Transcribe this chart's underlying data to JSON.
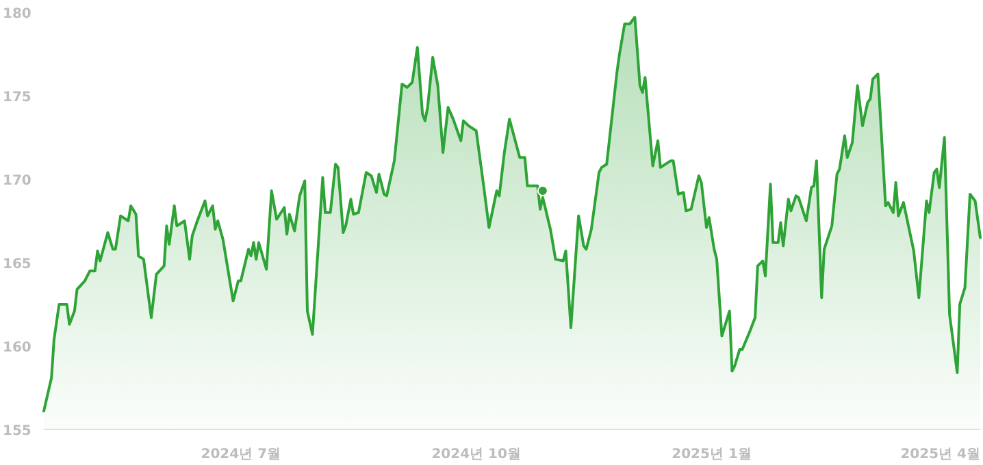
{
  "chart_data": {
    "type": "area",
    "xlim": [
      "2024-04-15",
      "2025-04-16"
    ],
    "xticks": [
      {
        "value": "2024-07-01",
        "label": "2024년 7월"
      },
      {
        "value": "2024-10-01",
        "label": "2024년 10월"
      },
      {
        "value": "2025-01-01",
        "label": "2025년 1월"
      },
      {
        "value": "2025-04-01",
        "label": "2025년 4월"
      }
    ],
    "ylim": [
      155,
      180
    ],
    "yticks": [
      155,
      160,
      165,
      170,
      175,
      180
    ],
    "series": [
      {
        "color": "#2ea336",
        "x": [
          "2024-04-15",
          "2024-04-18",
          "2024-04-19",
          "2024-04-21",
          "2024-04-24",
          "2024-04-25",
          "2024-04-27",
          "2024-04-28",
          "2024-05-01",
          "2024-05-03",
          "2024-05-05",
          "2024-05-06",
          "2024-05-07",
          "2024-05-10",
          "2024-05-12",
          "2024-05-13",
          "2024-05-15",
          "2024-05-18",
          "2024-05-19",
          "2024-05-21",
          "2024-05-22",
          "2024-05-24",
          "2024-05-27",
          "2024-05-29",
          "2024-06-01",
          "2024-06-02",
          "2024-06-03",
          "2024-06-05",
          "2024-06-06",
          "2024-06-09",
          "2024-06-11",
          "2024-06-12",
          "2024-06-14",
          "2024-06-17",
          "2024-06-18",
          "2024-06-20",
          "2024-06-21",
          "2024-06-22",
          "2024-06-24",
          "2024-06-28",
          "2024-06-30",
          "2024-07-01",
          "2024-07-04",
          "2024-07-05",
          "2024-07-06",
          "2024-07-07",
          "2024-07-08",
          "2024-07-11",
          "2024-07-13",
          "2024-07-15",
          "2024-07-18",
          "2024-07-19",
          "2024-07-20",
          "2024-07-22",
          "2024-07-24",
          "2024-07-26",
          "2024-07-27",
          "2024-07-29",
          "2024-08-02",
          "2024-08-03",
          "2024-08-05",
          "2024-08-07",
          "2024-08-08",
          "2024-08-10",
          "2024-08-11",
          "2024-08-13",
          "2024-08-14",
          "2024-08-16",
          "2024-08-19",
          "2024-08-21",
          "2024-08-23",
          "2024-08-24",
          "2024-08-26",
          "2024-08-27",
          "2024-08-30",
          "2024-09-02",
          "2024-09-04",
          "2024-09-06",
          "2024-09-08",
          "2024-09-10",
          "2024-09-11",
          "2024-09-12",
          "2024-09-14",
          "2024-09-16",
          "2024-09-18",
          "2024-09-20",
          "2024-09-22",
          "2024-09-25",
          "2024-09-26",
          "2024-09-28",
          "2024-10-01",
          "2024-10-04",
          "2024-10-06",
          "2024-10-09",
          "2024-10-10",
          "2024-10-12",
          "2024-10-14",
          "2024-10-18",
          "2024-10-20",
          "2024-10-21",
          "2024-10-25",
          "2024-10-26",
          "2024-10-27",
          "2024-10-30",
          "2024-11-01",
          "2024-11-04",
          "2024-11-05",
          "2024-11-07",
          "2024-11-10",
          "2024-11-12",
          "2024-11-13",
          "2024-11-15",
          "2024-11-18",
          "2024-11-19",
          "2024-11-21",
          "2024-11-25",
          "2024-11-26",
          "2024-11-28",
          "2024-11-30",
          "2024-12-02",
          "2024-12-04",
          "2024-12-05",
          "2024-12-06",
          "2024-12-09",
          "2024-12-11",
          "2024-12-12",
          "2024-12-16",
          "2024-12-17",
          "2024-12-19",
          "2024-12-21",
          "2024-12-22",
          "2024-12-24",
          "2024-12-27",
          "2024-12-28",
          "2024-12-30",
          "2024-12-31",
          "2025-01-02",
          "2025-01-03",
          "2025-01-05",
          "2025-01-08",
          "2025-01-09",
          "2025-01-10",
          "2025-01-12",
          "2025-01-13",
          "2025-01-16",
          "2025-01-18",
          "2025-01-19",
          "2025-01-21",
          "2025-01-22",
          "2025-01-24",
          "2025-01-25",
          "2025-01-27",
          "2025-01-28",
          "2025-01-29",
          "2025-01-31",
          "2025-02-01",
          "2025-02-03",
          "2025-02-04",
          "2025-02-07",
          "2025-02-09",
          "2025-02-10",
          "2025-02-11",
          "2025-02-13",
          "2025-02-14",
          "2025-02-17",
          "2025-02-19",
          "2025-02-20",
          "2025-02-22",
          "2025-02-23",
          "2025-02-25",
          "2025-02-27",
          "2025-03-01",
          "2025-03-03",
          "2025-03-04",
          "2025-03-05",
          "2025-03-07",
          "2025-03-10",
          "2025-03-11",
          "2025-03-13",
          "2025-03-14",
          "2025-03-15",
          "2025-03-17",
          "2025-03-21",
          "2025-03-23",
          "2025-03-26",
          "2025-03-27",
          "2025-03-29",
          "2025-03-30",
          "2025-03-31",
          "2025-04-02",
          "2025-04-04",
          "2025-04-07",
          "2025-04-08",
          "2025-04-10",
          "2025-04-12",
          "2025-04-14",
          "2025-04-16"
        ],
        "values": [
          156.1,
          158.1,
          160.4,
          162.5,
          162.5,
          161.3,
          162.1,
          163.4,
          163.9,
          164.5,
          164.5,
          165.7,
          165.1,
          166.8,
          165.8,
          165.8,
          167.8,
          167.5,
          168.4,
          167.9,
          165.4,
          165.2,
          161.7,
          164.3,
          164.8,
          167.2,
          166.1,
          168.4,
          167.2,
          167.5,
          165.2,
          166.6,
          167.5,
          168.7,
          167.8,
          168.4,
          167.0,
          167.5,
          166.4,
          162.7,
          163.9,
          163.9,
          165.8,
          165.4,
          166.2,
          165.2,
          166.2,
          164.6,
          169.3,
          167.6,
          168.3,
          166.7,
          167.9,
          166.9,
          169.0,
          169.9,
          162.1,
          160.7,
          170.1,
          168.0,
          168.0,
          170.9,
          170.7,
          166.8,
          167.2,
          168.8,
          167.9,
          168.0,
          170.4,
          170.2,
          169.2,
          170.3,
          169.1,
          169.0,
          171.1,
          175.7,
          175.5,
          175.8,
          177.9,
          173.9,
          173.5,
          174.3,
          177.3,
          175.6,
          171.6,
          174.3,
          173.6,
          172.3,
          173.5,
          173.2,
          172.9,
          169.5,
          167.1,
          169.3,
          169.0,
          171.6,
          173.6,
          171.3,
          171.3,
          169.6,
          169.6,
          168.2,
          168.9,
          167.0,
          165.2,
          165.1,
          165.7,
          161.1,
          167.8,
          166.0,
          165.8,
          167.0,
          170.4,
          170.7,
          170.9,
          176.4,
          177.5,
          179.3,
          179.3,
          179.7,
          175.6,
          175.2,
          176.1,
          170.8,
          172.3,
          170.7,
          171.1,
          171.1,
          169.1,
          169.2,
          168.1,
          168.2,
          170.2,
          169.8,
          167.1,
          167.7,
          165.8,
          165.2,
          160.6,
          162.1,
          158.5,
          158.8,
          159.8,
          159.8,
          160.9,
          161.7,
          164.8,
          165.1,
          164.2,
          169.7,
          166.2,
          166.2,
          167.4,
          166.0,
          168.8,
          168.1,
          169.0,
          168.9,
          167.5,
          169.5,
          169.6,
          171.1,
          162.9,
          165.8,
          167.2,
          170.3,
          170.6,
          172.6,
          171.3,
          172.2,
          175.6,
          173.2,
          174.6,
          174.8,
          176.0,
          176.3,
          168.4,
          168.6,
          168.0,
          169.8,
          167.8,
          168.6,
          165.7,
          162.9,
          168.7,
          168.0,
          170.4,
          170.6,
          169.5,
          172.5,
          161.9,
          158.4,
          162.5,
          163.5,
          169.1,
          168.7,
          166.5
        ]
      },
      {
        "type": "scatter",
        "color": "#2ea336",
        "x": [
          "2024-10-27"
        ],
        "values": [
          169.3
        ]
      }
    ]
  }
}
